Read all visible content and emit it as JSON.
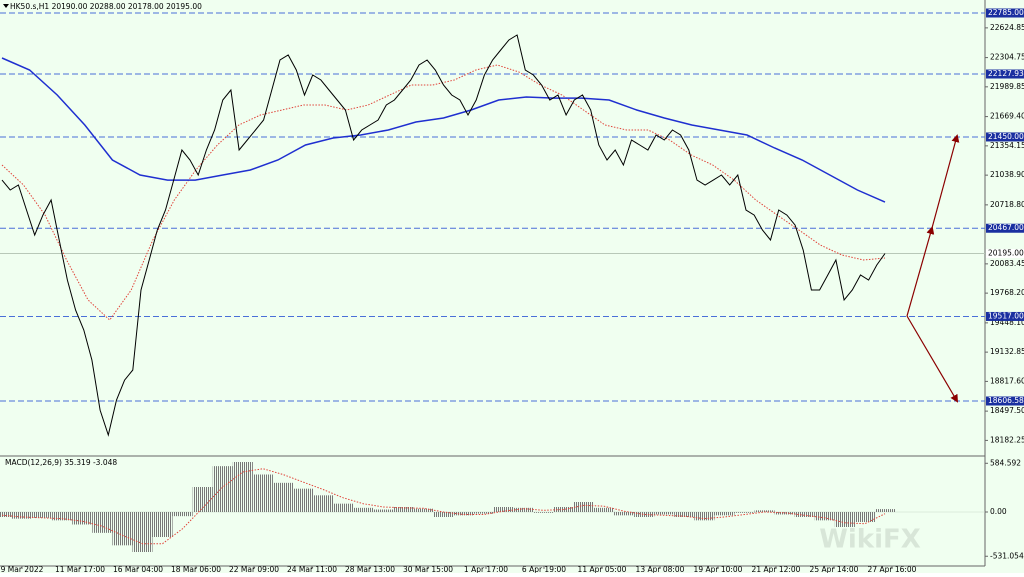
{
  "chart_data": {
    "type": "line",
    "title": "HK50.s,H1  20190.00 20288.00 20178.00 20195.00",
    "watermark": "WikiFX",
    "background": "#f0fff0",
    "ylim": [
      18025,
      22925
    ],
    "yticks": [
      22624.85,
      22304.75,
      21989.85,
      {
        "value": 21669.4,
        "label": "21669.40"
      },
      21354.15,
      {
        "value": 21038.9,
        "label": "21038.90"
      },
      {
        "value": 20718.8,
        "label": "20718.80"
      },
      20083.45,
      {
        "value": 19768.2,
        "label": "19768.20"
      },
      {
        "value": 19448.1,
        "label": "19448.10"
      },
      19132.85,
      {
        "value": 18817.6,
        "label": "18817.60"
      },
      {
        "value": 18497.5,
        "label": "18497.50"
      },
      18182.25
    ],
    "x_labels": [
      "9 Mar 2022",
      "11 Mar 17:00",
      "16 Mar 04:00",
      "18 Mar 06:00",
      "22 Mar 09:00",
      "24 Mar 11:00",
      "28 Mar 13:00",
      "30 Mar 15:00",
      "1 Apr 17:00",
      "6 Apr 19:00",
      "11 Apr 05:00",
      "13 Apr 08:00",
      "19 Apr 10:00",
      "21 Apr 12:00",
      "25 Apr 14:00",
      "27 Apr 16:00"
    ],
    "levels": [
      {
        "value": 22785,
        "label": "22785.00"
      },
      {
        "value": 22127.93,
        "label": "22127.93"
      },
      {
        "value": 21450,
        "label": "21450.00"
      },
      {
        "value": 20467,
        "label": "20467.00"
      },
      {
        "value": 19517,
        "label": "19517.00"
      },
      {
        "value": 18606.58,
        "label": "18606.58"
      }
    ],
    "level_color": "#4a6fd8",
    "current": {
      "value": 20195,
      "label": "20195.00"
    },
    "price": {
      "color": "#000000",
      "values": [
        20986,
        20879,
        20933,
        20663,
        20394,
        20609,
        20771,
        20340,
        19909,
        19586,
        19371,
        19048,
        18509,
        18240,
        18617,
        18832,
        18940,
        19802,
        20125,
        20448,
        20663,
        20986,
        21310,
        21202,
        21040,
        21310,
        21525,
        21848,
        21956,
        21310,
        21417,
        21525,
        21633,
        21956,
        22279,
        22333,
        22171,
        21902,
        22117,
        22063,
        21956,
        21848,
        21740,
        21417,
        21525,
        21579,
        21633,
        21794,
        21848,
        21956,
        22063,
        22225,
        22279,
        22171,
        22010,
        21902,
        21848,
        21687,
        21848,
        22117,
        22279,
        22387,
        22494,
        22548,
        22171,
        22117,
        22010,
        21848,
        21902,
        21687,
        21848,
        21902,
        21740,
        21363,
        21202,
        21310,
        21148,
        21417,
        21363,
        21310,
        21471,
        21417,
        21525,
        21471,
        21310,
        20986,
        20933,
        20986,
        21040,
        20933,
        21040,
        20663,
        20609,
        20448,
        20340,
        20663,
        20609,
        20501,
        20232,
        19802,
        19802,
        19963,
        20125,
        19694,
        19802,
        19963,
        19909,
        20071,
        20195
      ]
    },
    "ma_slow": {
      "color": "#1f2fd0",
      "values": [
        22300,
        22171,
        21902,
        21579,
        21202,
        21040,
        20986,
        20986,
        21040,
        21094,
        21202,
        21363,
        21439,
        21471,
        21525,
        21611,
        21654,
        21740,
        21848,
        21880,
        21869,
        21869,
        21848,
        21740,
        21654,
        21579,
        21525,
        21471,
        21331,
        21202,
        21040,
        20879,
        20749
      ]
    },
    "ma_fast": {
      "color": "#e0443a",
      "values": [
        21148,
        20933,
        20609,
        20125,
        19694,
        19479,
        19802,
        20340,
        20771,
        21094,
        21363,
        21579,
        21687,
        21740,
        21794,
        21794,
        21740,
        21794,
        21902,
        22010,
        22010,
        22063,
        22171,
        22225,
        22150,
        22010,
        21902,
        21740,
        21579,
        21525,
        21525,
        21417,
        21256,
        21148,
        20986,
        20771,
        20609,
        20448,
        20286,
        20179,
        20125,
        20147
      ]
    },
    "macd": {
      "title": "MACD(12,26,9) 35.319 -3.048",
      "ylim": [
        -636,
        660
      ],
      "yticks": [
        584.592,
        {
          "value": 0,
          "label": "0.00"
        },
        -531.054
      ],
      "histogram": {
        "color": "#808080",
        "values": [
          -60,
          -80,
          -70,
          -100,
          -150,
          -250,
          -400,
          -480,
          -300,
          -50,
          300,
          550,
          600,
          450,
          350,
          280,
          200,
          100,
          50,
          30,
          60,
          40,
          -60,
          -40,
          -20,
          60,
          50,
          -10,
          60,
          120,
          50,
          -40,
          -60,
          -30,
          -60,
          -100,
          -40,
          -10,
          20,
          -30,
          -60,
          -100,
          -180,
          -120,
          35
        ]
      },
      "signal": {
        "color": "#e0443a",
        "values": [
          -40,
          -60,
          -70,
          -80,
          -110,
          -170,
          -280,
          -380,
          -380,
          -200,
          50,
          300,
          480,
          520,
          450,
          360,
          270,
          170,
          100,
          60,
          50,
          45,
          0,
          -30,
          -30,
          10,
          40,
          20,
          30,
          80,
          70,
          10,
          -30,
          -40,
          -50,
          -80,
          -60,
          -30,
          0,
          -10,
          -40,
          -70,
          -130,
          -140,
          -20
        ]
      }
    }
  }
}
